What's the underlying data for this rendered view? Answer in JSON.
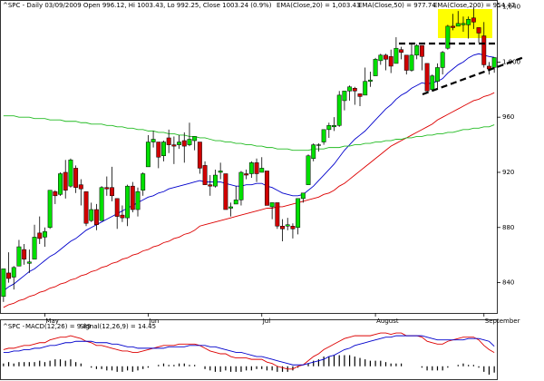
{
  "chart_data": [
    {
      "type": "candlestick",
      "title": "^SPC - Daily 03/09/2009 Open 996.12, Hi 1003.43, Lo 992.25, Close 1003.24 (0.9%)",
      "categories": [
        null,
        null,
        null,
        null,
        null,
        null,
        null,
        null,
        "May",
        null,
        null,
        null,
        null,
        null,
        null,
        null,
        null,
        null,
        null,
        null,
        null,
        null,
        null,
        null,
        null,
        null,
        null,
        null,
        "Jun",
        null,
        null,
        null,
        null,
        null,
        null,
        null,
        null,
        null,
        null,
        null,
        null,
        null,
        null,
        null,
        null,
        null,
        null,
        null,
        null,
        null,
        "Jul",
        null,
        null,
        null,
        null,
        null,
        null,
        null,
        null,
        null,
        null,
        null,
        null,
        null,
        null,
        null,
        null,
        null,
        null,
        null,
        null,
        null,
        "August",
        null,
        null,
        null,
        null,
        null,
        null,
        null,
        null,
        null,
        null,
        null,
        null,
        null,
        null,
        null,
        null,
        null,
        null,
        null,
        null,
        "September",
        null,
        null
      ],
      "open": [
        830,
        847,
        844,
        852,
        864,
        854,
        857,
        876,
        873,
        880,
        906,
        904,
        920,
        910,
        923,
        911,
        906,
        885,
        893,
        885,
        909,
        909,
        901,
        889,
        887,
        910,
        893,
        907,
        924,
        942,
        942,
        932,
        945,
        940,
        940,
        943,
        940,
        943,
        942,
        925,
        911,
        910,
        920,
        919,
        894,
        897,
        900,
        919,
        919,
        927,
        920,
        921,
        895,
        898,
        881,
        881,
        881,
        880,
        901,
        911,
        930,
        940,
        942,
        951,
        953,
        954,
        972,
        979,
        981,
        977,
        976,
        986,
        990,
        1001,
        1005,
        1004,
        999,
        1009,
        1005,
        994,
        1005,
        1012,
        999,
        980,
        986,
        996,
        1010,
        1026,
        1026,
        1027,
        1027,
        1032,
        1025,
        1019,
        997,
        996.12
      ],
      "high": [
        850,
        862,
        852,
        871,
        868,
        864,
        882,
        888,
        880,
        907,
        907,
        920,
        929,
        930,
        925,
        915,
        906,
        898,
        897,
        910,
        917,
        924,
        901,
        896,
        911,
        913,
        909,
        920,
        947,
        950,
        942,
        943,
        951,
        946,
        947,
        949,
        956,
        946,
        942,
        928,
        918,
        922,
        927,
        919,
        898,
        910,
        921,
        922,
        928,
        930,
        931,
        921,
        898,
        898,
        886,
        887,
        883,
        901,
        905,
        933,
        941,
        941,
        951,
        956,
        960,
        979,
        979,
        983,
        982,
        977,
        996,
        993,
        1003,
        1006,
        1006,
        1009,
        1018,
        1011,
        1005,
        1013,
        1013,
        1012,
        999,
        991,
        999,
        1008,
        1027,
        1035,
        1037,
        1033,
        1033,
        1040,
        1025,
        1029,
        1000,
        1003.43
      ],
      "low": [
        826,
        840,
        835,
        852,
        853,
        847,
        857,
        868,
        866,
        879,
        897,
        903,
        901,
        909,
        905,
        896,
        881,
        884,
        878,
        885,
        903,
        899,
        879,
        884,
        881,
        891,
        888,
        903,
        924,
        938,
        923,
        928,
        934,
        926,
        937,
        927,
        939,
        936,
        919,
        911,
        903,
        909,
        915,
        893,
        888,
        897,
        896,
        915,
        916,
        913,
        920,
        896,
        886,
        879,
        870,
        878,
        872,
        875,
        898,
        911,
        928,
        935,
        940,
        945,
        950,
        953,
        965,
        972,
        969,
        968,
        976,
        982,
        990,
        998,
        994,
        992,
        999,
        1002,
        991,
        993,
        1002,
        994,
        979,
        980,
        980,
        991,
        1009,
        1023,
        1026,
        1022,
        1017,
        1024,
        1014,
        996,
        991,
        992.25
      ],
      "close": [
        850,
        843,
        851,
        866,
        857,
        855,
        873,
        872,
        877,
        907,
        903,
        919,
        907,
        929,
        909,
        908,
        883,
        893,
        882,
        909,
        908,
        903,
        888,
        887,
        910,
        893,
        906,
        919,
        942,
        944,
        931,
        942,
        940,
        939,
        942,
        939,
        944,
        946,
        923,
        911,
        910,
        918,
        921,
        893,
        895,
        900,
        920,
        918,
        927,
        919,
        923,
        896,
        898,
        881,
        879,
        882,
        879,
        901,
        905,
        932,
        940,
        940,
        951,
        954,
        954,
        976,
        979,
        982,
        979,
        975,
        986,
        987,
        1002,
        1005,
        1002,
        997,
        1010,
        1007,
        994,
        1005,
        1012,
        1004,
        979,
        990,
        996,
        1007,
        1026,
        1025,
        1028,
        1028,
        1031,
        1029,
        1021,
        998,
        995,
        1003.24
      ],
      "up_color": "#00e000",
      "down_color": "#d00000",
      "series": [
        {
          "name": "EMA(Close,20) = 1,003.43",
          "color": "#0000cc",
          "values": [
            834,
            837,
            839,
            842,
            845,
            848,
            850,
            853,
            856,
            859,
            861,
            864,
            867,
            870,
            872,
            875,
            878,
            880,
            882,
            884,
            886,
            888,
            890,
            892,
            894,
            896,
            898,
            900,
            902,
            903,
            905,
            906,
            908,
            909,
            910,
            911,
            912,
            913,
            914,
            913,
            913,
            913,
            913,
            912,
            911,
            910,
            910,
            911,
            911,
            912,
            912,
            910,
            909,
            907,
            905,
            904,
            903,
            903,
            904,
            907,
            910,
            914,
            918,
            922,
            926,
            931,
            936,
            940,
            944,
            947,
            950,
            954,
            958,
            962,
            966,
            969,
            973,
            976,
            978,
            981,
            983,
            985,
            984,
            985,
            986,
            988,
            992,
            995,
            998,
            1000,
            1003,
            1005,
            1006,
            1005,
            1004,
            1003.43
          ]
        },
        {
          "name": "EMA(Close,50) = 977.74",
          "color": "#dd0000",
          "values": [
            822,
            824,
            825,
            827,
            828,
            830,
            831,
            833,
            834,
            836,
            837,
            839,
            840,
            842,
            843,
            845,
            846,
            848,
            849,
            851,
            852,
            854,
            855,
            857,
            858,
            860,
            861,
            863,
            864,
            866,
            867,
            869,
            870,
            872,
            873,
            875,
            876,
            878,
            881,
            882,
            883,
            884,
            885,
            886,
            887,
            888,
            889,
            890,
            891,
            892,
            893,
            894,
            894,
            895,
            895,
            896,
            897,
            898,
            899,
            900,
            901,
            902,
            904,
            905,
            907,
            910,
            912,
            915,
            918,
            921,
            924,
            927,
            930,
            933,
            936,
            939,
            941,
            943,
            945,
            947,
            949,
            951,
            953,
            955,
            958,
            960,
            962,
            964,
            966,
            968,
            970,
            972,
            973,
            975,
            976,
            977.74
          ]
        },
        {
          "name": "EMA(Close,200) = 954.47",
          "color": "#22bb22",
          "values": [
            961,
            961,
            961,
            960,
            960,
            960,
            959,
            959,
            959,
            958,
            958,
            958,
            957,
            957,
            957,
            956,
            956,
            955,
            955,
            955,
            954,
            954,
            953,
            953,
            952,
            952,
            951,
            951,
            950,
            950,
            949,
            949,
            948,
            948,
            947,
            947,
            946,
            946,
            945,
            945,
            944,
            943,
            943,
            942,
            942,
            941,
            941,
            940,
            940,
            939,
            939,
            938,
            938,
            937,
            937,
            937,
            936,
            936,
            936,
            936,
            937,
            937,
            937,
            938,
            938,
            938,
            939,
            939,
            940,
            940,
            941,
            941,
            942,
            942,
            943,
            943,
            944,
            944,
            945,
            945,
            946,
            946,
            947,
            947,
            948,
            948,
            949,
            949,
            950,
            951,
            951,
            952,
            952,
            953,
            953,
            954.47
          ]
        }
      ],
      "ylim": [
        818,
        1045
      ],
      "yticks": [
        840,
        880,
        920,
        960,
        {
          "value": 1000,
          "label": "1,000"
        },
        {
          "value": 1040,
          "label": "1,040"
        }
      ],
      "grid": false
    },
    {
      "type": "macd",
      "title": "^SPC -",
      "series": [
        {
          "name": "MACD(12,26) = 9.89",
          "color": "#dd0000",
          "values": [
            12,
            13,
            13,
            14,
            15,
            15,
            16,
            17,
            17,
            19,
            20,
            21,
            21,
            22,
            21,
            20,
            18,
            17,
            15,
            15,
            14,
            13,
            12,
            11,
            11,
            10,
            10,
            11,
            12,
            13,
            14,
            15,
            15,
            15,
            16,
            16,
            16,
            16,
            15,
            13,
            11,
            10,
            9,
            9,
            7,
            6,
            6,
            6,
            5,
            5,
            5,
            3,
            2,
            0,
            -1,
            -2,
            -2,
            0,
            1,
            4,
            7,
            9,
            12,
            14,
            16,
            18,
            20,
            21,
            22,
            22,
            22,
            22,
            23,
            24,
            24,
            23,
            24,
            24,
            22,
            22,
            22,
            21,
            18,
            17,
            16,
            16,
            18,
            19,
            20,
            21,
            21,
            21,
            19,
            15,
            12,
            9.89
          ]
        },
        {
          "name": "Signal(12,26,9) = 14.45",
          "color": "#0000cc",
          "values": [
            10,
            10,
            11,
            11,
            12,
            12,
            13,
            13,
            14,
            15,
            15,
            16,
            17,
            17,
            18,
            18,
            18,
            18,
            17,
            17,
            17,
            16,
            16,
            15,
            14,
            14,
            13,
            13,
            13,
            13,
            13,
            13,
            14,
            14,
            14,
            14,
            15,
            15,
            15,
            15,
            14,
            14,
            13,
            12,
            11,
            10,
            10,
            9,
            8,
            7,
            7,
            6,
            5,
            4,
            3,
            2,
            1,
            1,
            1,
            2,
            3,
            4,
            5,
            7,
            8,
            10,
            12,
            13,
            15,
            16,
            17,
            18,
            19,
            20,
            21,
            21,
            22,
            22,
            22,
            22,
            22,
            22,
            21,
            20,
            19,
            19,
            19,
            19,
            19,
            19,
            20,
            20,
            20,
            19,
            18,
            14.45
          ]
        }
      ],
      "histogram": {
        "color": "#000000",
        "values": [
          2,
          3,
          2,
          3,
          3,
          3,
          3,
          4,
          3,
          4,
          5,
          5,
          4,
          5,
          3,
          2,
          0,
          -1,
          -2,
          -2,
          -3,
          -3,
          -4,
          -4,
          -3,
          -4,
          -3,
          -2,
          -1,
          0,
          1,
          2,
          1,
          1,
          2,
          2,
          1,
          1,
          0,
          -2,
          -3,
          -4,
          -4,
          -3,
          -4,
          -4,
          -4,
          -3,
          -3,
          -2,
          -2,
          -3,
          -3,
          -4,
          -4,
          -4,
          -3,
          -1,
          0,
          2,
          4,
          5,
          7,
          7,
          8,
          8,
          8,
          8,
          7,
          6,
          5,
          4,
          4,
          4,
          3,
          2,
          2,
          2,
          0,
          0,
          0,
          -1,
          -3,
          -3,
          -3,
          -3,
          -1,
          0,
          1,
          2,
          1,
          1,
          -1,
          -4,
          -6,
          -4.56
        ]
      },
      "ylim": [
        -8,
        26
      ]
    }
  ]
}
